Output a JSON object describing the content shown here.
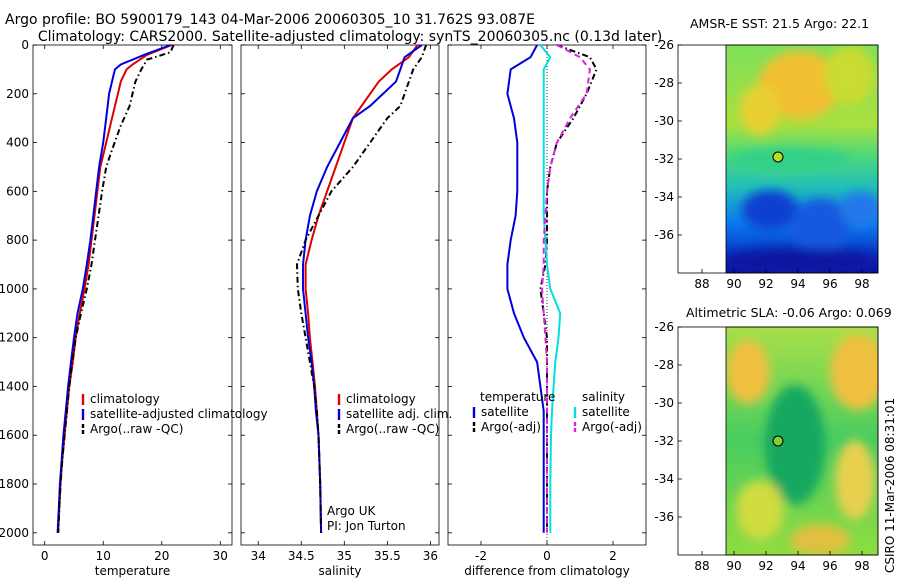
{
  "header": {
    "line1": "Argo profile: BO 5900179_143 04-Mar-2006 20060305_10 31.762S 93.087E",
    "line2": "Climatology: CARS2000. Satellite-adjusted climatology: synTS_20060305.nc (0.13d later)"
  },
  "colors": {
    "climatology": "#dd0000",
    "satellite": "#0000dd",
    "argo": "#000000",
    "sat_salinity": "#00e0e0",
    "argo_salinity": "#e020e0"
  },
  "chart_data": [
    {
      "type": "line",
      "name": "temperature-profile",
      "xlabel": "temperature",
      "ylabel": "",
      "xlim": [
        -2,
        32
      ],
      "ylim": [
        2050,
        0
      ],
      "xticks": [
        0,
        10,
        20,
        30
      ],
      "yticks": [
        0,
        200,
        400,
        600,
        800,
        1000,
        1200,
        1400,
        1600,
        1800,
        2000
      ],
      "legend": [
        "climatology",
        "satellite-adjusted climatology",
        "Argo(..raw -QC)"
      ],
      "series": [
        {
          "name": "climatology",
          "color": "#dd0000",
          "dash": "",
          "x": [
            21.7,
            17.5,
            15.0,
            14.0,
            13.0,
            12.5,
            11.5,
            10.5,
            9.5,
            9.0,
            8.5,
            8.0,
            7.5,
            6.8,
            6.0,
            5.3,
            4.8,
            4.2,
            3.8,
            3.4,
            3.0,
            2.7,
            2.5,
            2.3
          ],
          "y": [
            0,
            40,
            80,
            100,
            150,
            200,
            300,
            400,
            500,
            600,
            700,
            800,
            900,
            1000,
            1100,
            1200,
            1300,
            1400,
            1500,
            1600,
            1700,
            1800,
            1900,
            2000
          ]
        },
        {
          "name": "satellite-adjusted climatology",
          "color": "#0000dd",
          "dash": "",
          "x": [
            21.5,
            17.0,
            13.0,
            12.0,
            11.5,
            11.0,
            10.5,
            10.0,
            9.3,
            8.8,
            8.3,
            7.8,
            7.2,
            6.5,
            5.6,
            5.0,
            4.5,
            4.0,
            3.6,
            3.2,
            2.9,
            2.6,
            2.4,
            2.2
          ],
          "y": [
            0,
            40,
            80,
            100,
            150,
            200,
            300,
            400,
            500,
            600,
            700,
            800,
            900,
            1000,
            1100,
            1200,
            1300,
            1400,
            1500,
            1600,
            1700,
            1800,
            1900,
            2000
          ]
        },
        {
          "name": "Argo(..raw -QC)",
          "color": "#000000",
          "dash": "6,3,1.5,3",
          "x": [
            22.0,
            21.5,
            17.5,
            16.5,
            15.5,
            14.5,
            13.0,
            11.5,
            10.5,
            9.8,
            9.2,
            8.6,
            8.0,
            7.2,
            6.2,
            5.3,
            4.7,
            4.2,
            3.8,
            3.4,
            3.0,
            2.7,
            2.5,
            2.3
          ],
          "y": [
            0,
            30,
            60,
            100,
            150,
            250,
            330,
            430,
            500,
            600,
            700,
            800,
            900,
            1000,
            1100,
            1200,
            1300,
            1400,
            1500,
            1600,
            1700,
            1800,
            1900,
            2000
          ]
        }
      ]
    },
    {
      "type": "line",
      "name": "salinity-profile",
      "xlabel": "salinity",
      "ylabel": "",
      "xlim": [
        33.8,
        36.1
      ],
      "ylim": [
        2050,
        0
      ],
      "xticks": [
        34,
        34.5,
        35,
        35.5,
        36
      ],
      "yticks": [
        0,
        200,
        400,
        600,
        800,
        1000,
        1200,
        1400,
        1600,
        1800,
        2000
      ],
      "legend": [
        "climatology",
        "satellite adj. clim.",
        "Argo(..raw -QC)"
      ],
      "annotation": [
        "Argo UK",
        "PI: Jon Turton"
      ],
      "series": [
        {
          "name": "climatology",
          "color": "#dd0000",
          "dash": "",
          "x": [
            35.85,
            35.75,
            35.55,
            35.4,
            35.2,
            35.1,
            35.0,
            34.9,
            34.8,
            34.7,
            34.62,
            34.55,
            34.55,
            34.58,
            34.6,
            34.63,
            34.66,
            34.68,
            34.7,
            34.72,
            34.73
          ],
          "y": [
            0,
            50,
            100,
            150,
            250,
            300,
            400,
            500,
            600,
            700,
            800,
            900,
            1000,
            1100,
            1200,
            1300,
            1400,
            1500,
            1600,
            1800,
            2000
          ]
        },
        {
          "name": "satellite adj. clim.",
          "color": "#0000dd",
          "dash": "",
          "x": [
            35.9,
            35.7,
            35.65,
            35.6,
            35.3,
            35.1,
            34.95,
            34.8,
            34.68,
            34.6,
            34.55,
            34.52,
            34.52,
            34.55,
            34.58,
            34.62,
            34.65,
            34.67,
            34.7,
            34.72,
            34.73
          ],
          "y": [
            0,
            50,
            100,
            150,
            250,
            300,
            400,
            500,
            600,
            700,
            800,
            900,
            1000,
            1100,
            1200,
            1300,
            1400,
            1500,
            1600,
            1800,
            2000
          ]
        },
        {
          "name": "Argo(..raw -QC)",
          "color": "#000000",
          "dash": "6,3,1.5,3",
          "x": [
            35.95,
            35.9,
            35.8,
            35.75,
            35.65,
            35.5,
            35.3,
            35.1,
            34.85,
            34.7,
            34.55,
            34.45,
            34.46,
            34.5,
            34.55,
            34.6,
            34.65,
            34.68,
            34.7,
            34.72,
            34.73
          ],
          "y": [
            0,
            50,
            100,
            150,
            250,
            300,
            400,
            500,
            600,
            700,
            800,
            900,
            1000,
            1100,
            1200,
            1300,
            1400,
            1500,
            1600,
            1800,
            2000
          ]
        }
      ]
    },
    {
      "type": "line",
      "name": "difference-profile",
      "xlabel": "difference from climatology",
      "ylabel": "",
      "xlim": [
        -3,
        3
      ],
      "ylim": [
        2050,
        0
      ],
      "xticks": [
        -2,
        0,
        2
      ],
      "yticks": [
        0,
        200,
        400,
        600,
        800,
        1000,
        1200,
        1400,
        1600,
        1800,
        2000
      ],
      "legend_left_heading": "temperature",
      "legend_right_heading": "salinity",
      "legend": [
        "satellite",
        "Argo(-adj)",
        "satellite",
        "Argo(-adj)"
      ],
      "series": [
        {
          "name": "temperature satellite",
          "color": "#0000dd",
          "dash": "",
          "x": [
            -0.3,
            -0.5,
            -1.1,
            -1.2,
            -1.0,
            -0.9,
            -0.9,
            -0.9,
            -0.95,
            -1.1,
            -1.2,
            -1.2,
            -1.0,
            -0.7,
            -0.3,
            -0.2,
            -0.1,
            -0.1,
            -0.1,
            -0.1
          ],
          "y": [
            0,
            50,
            100,
            200,
            300,
            400,
            500,
            600,
            700,
            800,
            900,
            1000,
            1100,
            1200,
            1300,
            1400,
            1500,
            1600,
            1800,
            2000
          ]
        },
        {
          "name": "temperature Argo(-adj)",
          "color": "#000000",
          "dash": "6,3,1.5,3",
          "x": [
            0.3,
            1.3,
            1.5,
            1.2,
            0.8,
            0.3,
            0.1,
            0.0,
            0.0,
            0.0,
            -0.05,
            -0.2,
            -0.1,
            0.0,
            0.0,
            0.0,
            0.0,
            0.0,
            0.0,
            0.0
          ],
          "y": [
            0,
            50,
            100,
            200,
            300,
            400,
            500,
            600,
            700,
            800,
            900,
            1000,
            1100,
            1200,
            1300,
            1400,
            1500,
            1600,
            1800,
            2000
          ]
        },
        {
          "name": "salinity satellite",
          "color": "#00e0e0",
          "dash": "",
          "x": [
            -0.2,
            0.1,
            -0.1,
            -0.1,
            -0.1,
            -0.1,
            -0.1,
            -0.1,
            -0.1,
            -0.05,
            0.0,
            0.1,
            0.4,
            0.35,
            0.25,
            0.2,
            0.15,
            0.12,
            0.1,
            0.1
          ],
          "y": [
            0,
            50,
            100,
            200,
            300,
            400,
            500,
            600,
            700,
            800,
            900,
            1000,
            1100,
            1200,
            1300,
            1400,
            1500,
            1600,
            1800,
            2000
          ]
        },
        {
          "name": "salinity Argo(-adj)",
          "color": "#e020e0",
          "dash": "6,4",
          "x": [
            0.3,
            1.0,
            1.3,
            1.2,
            0.7,
            0.3,
            0.1,
            0.0,
            -0.05,
            -0.1,
            -0.1,
            -0.15,
            -0.1,
            -0.05,
            0.0,
            0.0,
            0.0,
            0.0,
            0.0,
            0.0
          ],
          "y": [
            0,
            50,
            100,
            200,
            300,
            400,
            500,
            600,
            700,
            800,
            900,
            1000,
            1100,
            1200,
            1300,
            1400,
            1500,
            1600,
            1800,
            2000
          ]
        }
      ]
    },
    {
      "type": "heatmap",
      "name": "amsr-sst-map",
      "title": "AMSR-E SST: 21.5 Argo: 22.1",
      "xlim": [
        86.5,
        99
      ],
      "ylim": [
        -38,
        -26
      ],
      "xticks": [
        88,
        90,
        92,
        94,
        96,
        98
      ],
      "yticks": [
        -26,
        -28,
        -30,
        -32,
        -34,
        -36
      ],
      "data_xrange": [
        90,
        99
      ],
      "marker": {
        "lon": 93.087,
        "lat": -31.762
      }
    },
    {
      "type": "heatmap",
      "name": "altimetric-sla-map",
      "title": "Altimetric SLA: -0.06 Argo: 0.069",
      "side_label": "CSIRO 11-Mar-2006 08:31:01",
      "xlim": [
        86.5,
        99
      ],
      "ylim": [
        -38,
        -26
      ],
      "xticks": [
        88,
        90,
        92,
        94,
        96,
        98
      ],
      "yticks": [
        -26,
        -28,
        -30,
        -32,
        -34,
        -36
      ],
      "data_xrange": [
        90,
        99
      ],
      "marker": {
        "lon": 93.087,
        "lat": -31.762
      }
    }
  ]
}
